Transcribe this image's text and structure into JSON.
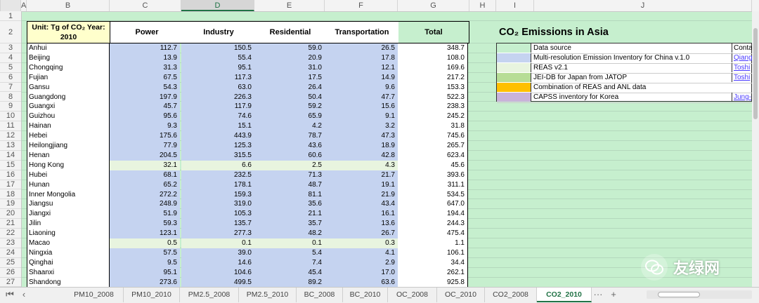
{
  "columns": [
    "A",
    "B",
    "C",
    "D",
    "E",
    "F",
    "G",
    "H",
    "I",
    "J"
  ],
  "selected_column": "D",
  "row_numbers": [
    "1",
    "2",
    "3",
    "4",
    "5",
    "6",
    "7",
    "8",
    "9",
    "10",
    "11",
    "12",
    "13",
    "14",
    "15",
    "16",
    "17",
    "18",
    "19",
    "20",
    "21",
    "22",
    "23",
    "24",
    "25",
    "26",
    "27"
  ],
  "table_header": {
    "unit_line1": "Unit: Tg of CO₂ Year:",
    "unit_line2": "2010",
    "power": "Power",
    "industry": "Industry",
    "residential": "Residential",
    "transportation": "Transportation",
    "total": "Total"
  },
  "rows": [
    {
      "province": "Anhui",
      "power": "112.7",
      "industry": "150.5",
      "residential": "59.0",
      "transportation": "26.5",
      "total": "348.7",
      "source": "meic"
    },
    {
      "province": "Beijing",
      "power": "13.9",
      "industry": "55.4",
      "residential": "20.9",
      "transportation": "17.8",
      "total": "108.0",
      "source": "meic"
    },
    {
      "province": "Chongqing",
      "power": "31.3",
      "industry": "95.1",
      "residential": "31.0",
      "transportation": "12.1",
      "total": "169.6",
      "source": "meic"
    },
    {
      "province": "Fujian",
      "power": "67.5",
      "industry": "117.3",
      "residential": "17.5",
      "transportation": "14.9",
      "total": "217.2",
      "source": "meic"
    },
    {
      "province": "Gansu",
      "power": "54.3",
      "industry": "63.0",
      "residential": "26.4",
      "transportation": "9.6",
      "total": "153.3",
      "source": "meic"
    },
    {
      "province": "Guangdong",
      "power": "197.9",
      "industry": "226.3",
      "residential": "50.4",
      "transportation": "47.7",
      "total": "522.3",
      "source": "meic"
    },
    {
      "province": "Guangxi",
      "power": "45.7",
      "industry": "117.9",
      "residential": "59.2",
      "transportation": "15.6",
      "total": "238.3",
      "source": "meic"
    },
    {
      "province": "Guizhou",
      "power": "95.6",
      "industry": "74.6",
      "residential": "65.9",
      "transportation": "9.1",
      "total": "245.2",
      "source": "meic"
    },
    {
      "province": "Hainan",
      "power": "9.3",
      "industry": "15.1",
      "residential": "4.2",
      "transportation": "3.2",
      "total": "31.8",
      "source": "meic"
    },
    {
      "province": "Hebei",
      "power": "175.6",
      "industry": "443.9",
      "residential": "78.7",
      "transportation": "47.3",
      "total": "745.6",
      "source": "meic"
    },
    {
      "province": "Heilongjiang",
      "power": "77.9",
      "industry": "125.3",
      "residential": "43.6",
      "transportation": "18.9",
      "total": "265.7",
      "source": "meic"
    },
    {
      "province": "Henan",
      "power": "204.5",
      "industry": "315.5",
      "residential": "60.6",
      "transportation": "42.8",
      "total": "623.4",
      "source": "meic"
    },
    {
      "province": "Hong Kong",
      "power": "32.1",
      "industry": "6.6",
      "residential": "2.5",
      "transportation": "4.3",
      "total": "45.6",
      "source": "reas"
    },
    {
      "province": "Hubei",
      "power": "68.1",
      "industry": "232.5",
      "residential": "71.3",
      "transportation": "21.7",
      "total": "393.6",
      "source": "meic"
    },
    {
      "province": "Hunan",
      "power": "65.2",
      "industry": "178.1",
      "residential": "48.7",
      "transportation": "19.1",
      "total": "311.1",
      "source": "meic"
    },
    {
      "province": "Inner Mongolia",
      "power": "272.2",
      "industry": "159.3",
      "residential": "81.1",
      "transportation": "21.9",
      "total": "534.5",
      "source": "meic"
    },
    {
      "province": "Jiangsu",
      "power": "248.9",
      "industry": "319.0",
      "residential": "35.6",
      "transportation": "43.4",
      "total": "647.0",
      "source": "meic"
    },
    {
      "province": "Jiangxi",
      "power": "51.9",
      "industry": "105.3",
      "residential": "21.1",
      "transportation": "16.1",
      "total": "194.4",
      "source": "meic"
    },
    {
      "province": "Jilin",
      "power": "59.3",
      "industry": "135.7",
      "residential": "35.7",
      "transportation": "13.6",
      "total": "244.3",
      "source": "meic"
    },
    {
      "province": "Liaoning",
      "power": "123.1",
      "industry": "277.3",
      "residential": "48.2",
      "transportation": "26.7",
      "total": "475.4",
      "source": "meic"
    },
    {
      "province": "Macao",
      "power": "0.5",
      "industry": "0.1",
      "residential": "0.1",
      "transportation": "0.3",
      "total": "1.1",
      "source": "reas"
    },
    {
      "province": "Ningxia",
      "power": "57.5",
      "industry": "39.0",
      "residential": "5.4",
      "transportation": "4.1",
      "total": "106.1",
      "source": "meic"
    },
    {
      "province": "Qinghai",
      "power": "9.5",
      "industry": "14.6",
      "residential": "7.4",
      "transportation": "2.9",
      "total": "34.4",
      "source": "meic"
    },
    {
      "province": "Shaanxi",
      "power": "95.1",
      "industry": "104.6",
      "residential": "45.4",
      "transportation": "17.0",
      "total": "262.1",
      "source": "meic"
    },
    {
      "province": "Shandong",
      "power": "273.6",
      "industry": "499.5",
      "residential": "89.2",
      "transportation": "63.6",
      "total": "925.8",
      "source": "meic"
    }
  ],
  "title": "CO₂ Emissions in Asia",
  "legend": {
    "header_source": "Data source",
    "header_contact": "Conta",
    "items": [
      {
        "label": "Multi-resolution Emission Inventory for China v.1.0",
        "color": "#c5d3f0",
        "contact": "Qiang"
      },
      {
        "label": "REAS v2.1",
        "color": "#e8f4df",
        "contact": "Toshi"
      },
      {
        "label": "JEI-DB for Japan from JATOP",
        "color": "#b7dd96",
        "contact": "Toshi"
      },
      {
        "label": "Combination of REAS and ANL data",
        "color": "#ffc000",
        "contact": ""
      },
      {
        "label": "CAPSS inventory for Korea",
        "color": "#c9b3d9",
        "contact": "Jung-"
      }
    ]
  },
  "colors": {
    "meic": "#c5d3f0",
    "reas": "#e8f4df",
    "sheet_bg": "#c6efce"
  },
  "tabs": [
    "PM10_2008",
    "PM10_2010",
    "PM2.5_2008",
    "PM2.5_2010",
    "BC_2008",
    "BC_2010",
    "OC_2008",
    "OC_2010",
    "CO2_2008",
    "CO2_2010"
  ],
  "active_tab": "CO2_2010",
  "tab_more": "···",
  "tab_add": "+",
  "watermark_text": "友绿网"
}
